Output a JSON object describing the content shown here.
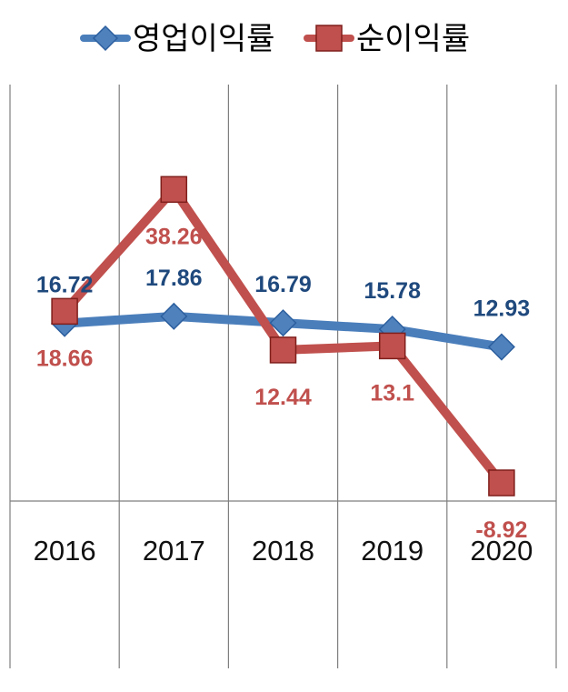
{
  "colors": {
    "operating_line": "#4a7ebb",
    "operating_marker_fill": "#4f81bd",
    "operating_marker_stroke": "#2c5f9e",
    "operating_label": "#1f497d",
    "net_line": "#c0504d",
    "net_marker_fill": "#c0504d",
    "net_marker_stroke": "#7f1f1c",
    "net_label": "#c0504d",
    "grid": "#7f7f7f"
  },
  "legend": {
    "items": [
      {
        "label": "영업이익률",
        "marker": "diamond"
      },
      {
        "label": "순이익률",
        "marker": "square"
      }
    ]
  },
  "chart_data": {
    "type": "line",
    "categories": [
      "2016",
      "2017",
      "2018",
      "2019",
      "2020"
    ],
    "series": [
      {
        "name": "영업이익률",
        "marker": "diamond",
        "values": [
          16.72,
          17.86,
          16.79,
          15.78,
          12.93
        ],
        "labels": [
          "16.72",
          "17.86",
          "16.79",
          "15.78",
          "12.93"
        ]
      },
      {
        "name": "순이익률",
        "marker": "square",
        "values": [
          18.66,
          38.26,
          12.44,
          13.1,
          -8.92
        ],
        "labels": [
          "18.66",
          "38.26",
          "12.44",
          "13.1",
          "-8.92"
        ]
      }
    ],
    "title": "",
    "xlabel": "",
    "ylabel": "",
    "ylim": [
      -10,
      50
    ],
    "grid": "vertical",
    "legend_position": "top"
  }
}
